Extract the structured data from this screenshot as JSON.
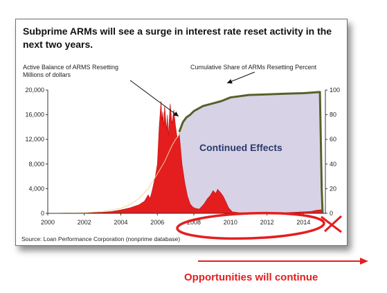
{
  "title": "Subprime ARMs will see a surge in interest rate reset activity in the next two years.",
  "source": "Source: Loan Performance Corporation (nonprime database)",
  "footer_text": "Opportunities  will continue",
  "colors": {
    "red": "#e41e1e",
    "line_olive": "#55612a",
    "fill_lavender": "#d8d2e6",
    "label_navy": "#2a3a6b"
  },
  "chart_data": {
    "type": "area",
    "x_ticks": [
      "2000",
      "2002",
      "2004",
      "2006",
      "2008",
      "2010",
      "2012",
      "2014"
    ],
    "xlim": [
      2000,
      2015.2
    ],
    "left_axis": {
      "label_line1": "Active Balance of ARMS Resetting",
      "label_line2": "Millions of dollars",
      "ticks": [
        "0",
        "4,000",
        "8,000",
        "12,000",
        "16,000",
        "20,000"
      ],
      "ylim": [
        0,
        20000
      ]
    },
    "right_axis": {
      "label": "Cumulative Share of ARMs Resetting Percent",
      "ticks": [
        "0",
        "20",
        "40",
        "60",
        "80",
        "100"
      ],
      "ylim": [
        0,
        100
      ]
    },
    "annotation": "Continued Effects",
    "series": [
      {
        "axis": "left",
        "style": "red-area",
        "points": [
          [
            2000.4,
            0
          ],
          [
            2001,
            50
          ],
          [
            2002,
            100
          ],
          [
            2003,
            180
          ],
          [
            2003.5,
            300
          ],
          [
            2004,
            550
          ],
          [
            2004.5,
            900
          ],
          [
            2005,
            1400
          ],
          [
            2005.3,
            2000
          ],
          [
            2005.5,
            3000
          ],
          [
            2005.6,
            2400
          ],
          [
            2005.7,
            3500
          ],
          [
            2005.8,
            4800
          ],
          [
            2005.9,
            6200
          ],
          [
            2006,
            8000
          ],
          [
            2006.1,
            14000
          ],
          [
            2006.2,
            18200
          ],
          [
            2006.25,
            15000
          ],
          [
            2006.3,
            16500
          ],
          [
            2006.35,
            14000
          ],
          [
            2006.4,
            17500
          ],
          [
            2006.5,
            13500
          ],
          [
            2006.55,
            16000
          ],
          [
            2006.6,
            12500
          ],
          [
            2006.7,
            17800
          ],
          [
            2006.8,
            14500
          ],
          [
            2006.9,
            16800
          ],
          [
            2007,
            14000
          ],
          [
            2007.1,
            12000
          ],
          [
            2007.2,
            13000
          ],
          [
            2007.35,
            8000
          ],
          [
            2007.5,
            5000
          ],
          [
            2007.65,
            2800
          ],
          [
            2007.8,
            1500
          ],
          [
            2007.95,
            1000
          ],
          [
            2008.1,
            800
          ],
          [
            2008.3,
            700
          ],
          [
            2008.55,
            1500
          ],
          [
            2008.75,
            2400
          ],
          [
            2008.9,
            2900
          ],
          [
            2009.05,
            3700
          ],
          [
            2009.2,
            3200
          ],
          [
            2009.3,
            3900
          ],
          [
            2009.45,
            3400
          ],
          [
            2009.6,
            2800
          ],
          [
            2009.75,
            1900
          ],
          [
            2009.9,
            900
          ],
          [
            2010.1,
            250
          ],
          [
            2010.5,
            100
          ],
          [
            2011,
            100
          ],
          [
            2012,
            80
          ],
          [
            2013,
            100
          ],
          [
            2014.4,
            300
          ],
          [
            2014.7,
            500
          ],
          [
            2015,
            600
          ],
          [
            2015.1,
            0
          ]
        ]
      },
      {
        "axis": "right",
        "style": "thin-line",
        "points": [
          [
            2000.4,
            0
          ],
          [
            2002,
            0.5
          ],
          [
            2003,
            1.5
          ],
          [
            2004,
            4
          ],
          [
            2004.5,
            7
          ],
          [
            2005,
            12
          ],
          [
            2005.5,
            20
          ],
          [
            2006,
            32
          ],
          [
            2006.4,
            42
          ],
          [
            2006.8,
            55
          ],
          [
            2007,
            60
          ],
          [
            2007.3,
            66
          ],
          [
            2007.6,
            72
          ]
        ]
      },
      {
        "axis": "right",
        "style": "olive-line-lavender-fill",
        "points": [
          [
            2007.2,
            66
          ],
          [
            2007.4,
            74
          ],
          [
            2007.6,
            78
          ],
          [
            2007.8,
            80
          ],
          [
            2008,
            83
          ],
          [
            2008.5,
            87
          ],
          [
            2009,
            89
          ],
          [
            2009.5,
            91
          ],
          [
            2010,
            94
          ],
          [
            2011,
            96
          ],
          [
            2012,
            96.5
          ],
          [
            2013,
            97
          ],
          [
            2014,
            97.5
          ],
          [
            2014.5,
            98
          ],
          [
            2014.9,
            98.5
          ],
          [
            2015,
            20
          ],
          [
            2015.05,
            0
          ]
        ]
      }
    ]
  }
}
